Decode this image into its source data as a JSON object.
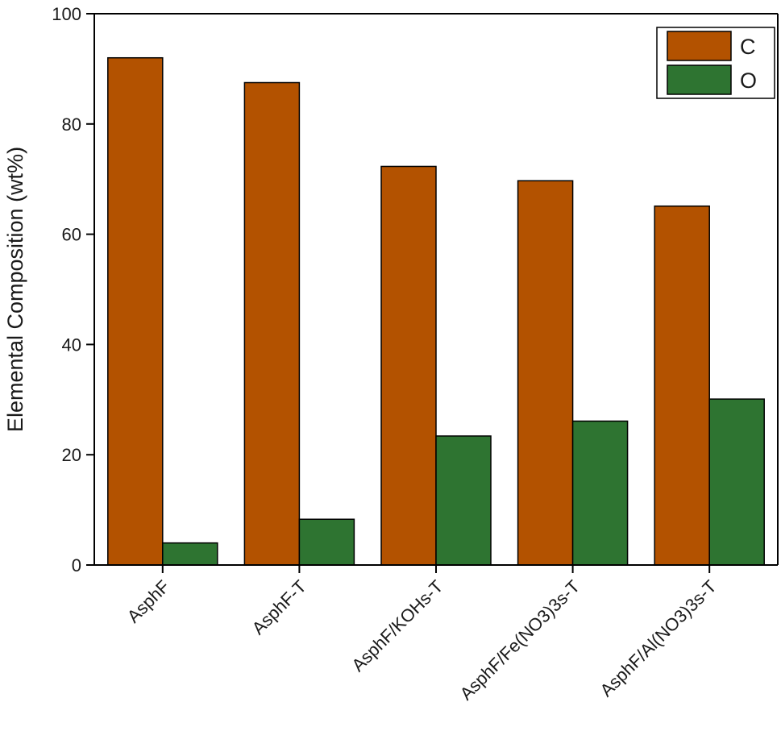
{
  "chart_data": {
    "type": "bar",
    "title": "",
    "xlabel": "",
    "ylabel": "Elemental Composition (wt%)",
    "ylim": [
      0,
      100
    ],
    "yticks": [
      0,
      20,
      40,
      60,
      80,
      100
    ],
    "grid": false,
    "legend_position": "top-right",
    "categories": [
      "AsphF",
      "AsphF-T",
      "AsphF/KOHs-T",
      "AsphF/Fe(NO3)3s-T",
      "AsphF/Al(NO3)3s-T"
    ],
    "series": [
      {
        "name": "C",
        "color": "#b35200",
        "values": [
          92.0,
          87.5,
          72.3,
          69.7,
          65.1
        ]
      },
      {
        "name": "O",
        "color": "#2e7431",
        "values": [
          4.0,
          8.3,
          23.4,
          26.1,
          30.1
        ]
      }
    ]
  }
}
